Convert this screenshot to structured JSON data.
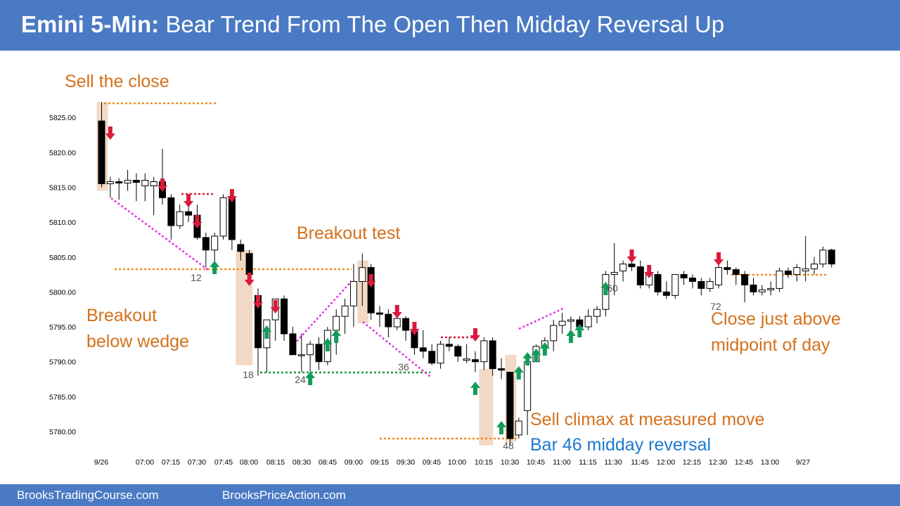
{
  "header": {
    "title_bold": "Emini 5-Min:",
    "title_rest": " Bear Trend From The Open Then Midday Reversal Up"
  },
  "footer": {
    "left": "BrooksTradingCourse.com",
    "right": "BrooksPriceAction.com"
  },
  "colors": {
    "header_bg": "#4a7ac3",
    "annotation": "#d4711c",
    "annotation_blue": "#1a7ad0",
    "bull_arrow": "#129c5a",
    "bear_arrow": "#d81b3c",
    "trendline": "#e233e8",
    "dotted_orange": "#f28a1c",
    "dotted_green": "#1a9a3a",
    "dotted_red": "#d81b3c",
    "highlight": "#f2d9c6"
  },
  "annotations": {
    "sell_the_close": "Sell the close",
    "breakout_test": "Breakout test",
    "breakout_below_wedge_1": "Breakout",
    "breakout_below_wedge_2": "below wedge",
    "close_above_mid_1": "Close just above",
    "close_above_mid_2": "midpoint of day",
    "sell_climax": "Sell climax at measured move",
    "midday_reversal": "Bar 46 midday reversal"
  },
  "chart_data": {
    "type": "candlestick",
    "y_ticks": [
      "5780.00",
      "5785.00",
      "5790.00",
      "5795.00",
      "5800.00",
      "5805.00",
      "5810.00",
      "5815.00",
      "5820.00",
      "5825.00"
    ],
    "x_ticks": [
      "9/26",
      "07:00",
      "07:15",
      "07:30",
      "07:45",
      "08:00",
      "08:15",
      "08:30",
      "08:45",
      "09:00",
      "09:15",
      "09:30",
      "09:45",
      "10:00",
      "10:15",
      "10:30",
      "10:45",
      "11:00",
      "11:15",
      "11:30",
      "11:45",
      "12:00",
      "12:15",
      "12:30",
      "12:45",
      "13:00",
      "9/27"
    ],
    "bar_labels": [
      {
        "bar": 12,
        "text": "12"
      },
      {
        "bar": 18,
        "text": "18"
      },
      {
        "bar": 24,
        "text": "24"
      },
      {
        "bar": 36,
        "text": "36"
      },
      {
        "bar": 48,
        "text": "48"
      },
      {
        "bar": 60,
        "text": "60"
      },
      {
        "bar": 72,
        "text": "72"
      }
    ],
    "bars": [
      {
        "o": 5824.5,
        "h": 5827.2,
        "l": 5815.0,
        "c": 5815.5
      },
      {
        "o": 5815.5,
        "h": 5816.5,
        "l": 5813.5,
        "c": 5815.8
      },
      {
        "o": 5815.8,
        "h": 5816.3,
        "l": 5813.2,
        "c": 5815.6
      },
      {
        "o": 5815.6,
        "h": 5817.5,
        "l": 5814.5,
        "c": 5816.0
      },
      {
        "o": 5816.0,
        "h": 5817.0,
        "l": 5813.0,
        "c": 5815.7
      },
      {
        "o": 5815.2,
        "h": 5817.0,
        "l": 5813.0,
        "c": 5816.0
      },
      {
        "o": 5815.2,
        "h": 5816.5,
        "l": 5811.0,
        "c": 5815.8
      },
      {
        "o": 5815.8,
        "h": 5820.5,
        "l": 5812.5,
        "c": 5813.5
      },
      {
        "o": 5813.5,
        "h": 5814.0,
        "l": 5807.5,
        "c": 5809.5
      },
      {
        "o": 5809.5,
        "h": 5812.5,
        "l": 5809.0,
        "c": 5811.5
      },
      {
        "o": 5811.5,
        "h": 5813.5,
        "l": 5810.0,
        "c": 5811.0
      },
      {
        "o": 5811.0,
        "h": 5812.5,
        "l": 5807.5,
        "c": 5807.8
      },
      {
        "o": 5807.8,
        "h": 5808.5,
        "l": 5803.5,
        "c": 5806.0
      },
      {
        "o": 5806.0,
        "h": 5808.5,
        "l": 5804.0,
        "c": 5808.0
      },
      {
        "o": 5808.0,
        "h": 5814.0,
        "l": 5807.5,
        "c": 5813.5
      },
      {
        "o": 5813.5,
        "h": 5813.5,
        "l": 5806.0,
        "c": 5807.5
      },
      {
        "o": 5806.8,
        "h": 5807.5,
        "l": 5804.5,
        "c": 5805.8
      },
      {
        "o": 5805.5,
        "h": 5806.0,
        "l": 5801.0,
        "c": 5802.5
      },
      {
        "o": 5799.5,
        "h": 5800.5,
        "l": 5788.0,
        "c": 5792.0
      },
      {
        "o": 5792.0,
        "h": 5796.0,
        "l": 5788.5,
        "c": 5796.0
      },
      {
        "o": 5796.0,
        "h": 5799.0,
        "l": 5793.0,
        "c": 5799.0
      },
      {
        "o": 5799.0,
        "h": 5799.5,
        "l": 5793.0,
        "c": 5794.0
      },
      {
        "o": 5794.0,
        "h": 5795.0,
        "l": 5791.0,
        "c": 5791.0
      },
      {
        "o": 5791.0,
        "h": 5794.0,
        "l": 5788.5,
        "c": 5791.0
      },
      {
        "o": 5791.0,
        "h": 5793.0,
        "l": 5788.5,
        "c": 5792.5
      },
      {
        "o": 5792.5,
        "h": 5793.5,
        "l": 5788.8,
        "c": 5790.0
      },
      {
        "o": 5790.0,
        "h": 5795.0,
        "l": 5789.5,
        "c": 5794.5
      },
      {
        "o": 5794.5,
        "h": 5797.5,
        "l": 5791.0,
        "c": 5796.5
      },
      {
        "o": 5796.5,
        "h": 5799.0,
        "l": 5794.0,
        "c": 5798.0
      },
      {
        "o": 5798.0,
        "h": 5804.0,
        "l": 5795.0,
        "c": 5801.5
      },
      {
        "o": 5801.5,
        "h": 5805.5,
        "l": 5798.0,
        "c": 5803.5
      },
      {
        "o": 5803.5,
        "h": 5804.0,
        "l": 5796.0,
        "c": 5797.0
      },
      {
        "o": 5797.0,
        "h": 5798.0,
        "l": 5795.0,
        "c": 5796.8
      },
      {
        "o": 5796.8,
        "h": 5797.5,
        "l": 5793.5,
        "c": 5795.0
      },
      {
        "o": 5795.0,
        "h": 5796.5,
        "l": 5794.5,
        "c": 5796.2
      },
      {
        "o": 5796.2,
        "h": 5796.5,
        "l": 5793.0,
        "c": 5794.5
      },
      {
        "o": 5794.5,
        "h": 5795.5,
        "l": 5791.0,
        "c": 5792.0
      },
      {
        "o": 5792.0,
        "h": 5794.5,
        "l": 5790.5,
        "c": 5791.5
      },
      {
        "o": 5791.5,
        "h": 5792.5,
        "l": 5789.5,
        "c": 5789.8
      },
      {
        "o": 5789.8,
        "h": 5793.0,
        "l": 5789.0,
        "c": 5792.5
      },
      {
        "o": 5792.5,
        "h": 5793.5,
        "l": 5791.5,
        "c": 5792.2
      },
      {
        "o": 5792.2,
        "h": 5792.5,
        "l": 5790.0,
        "c": 5790.8
      },
      {
        "o": 5790.2,
        "h": 5792.5,
        "l": 5789.8,
        "c": 5790.4
      },
      {
        "o": 5790.3,
        "h": 5791.5,
        "l": 5788.5,
        "c": 5790.0
      },
      {
        "o": 5790.0,
        "h": 5793.5,
        "l": 5788.8,
        "c": 5793.0
      },
      {
        "o": 5793.0,
        "h": 5793.5,
        "l": 5788.0,
        "c": 5789.0
      },
      {
        "o": 5789.0,
        "h": 5790.5,
        "l": 5787.5,
        "c": 5788.8
      },
      {
        "o": 5788.5,
        "h": 5788.5,
        "l": 5778.0,
        "c": 5779.0
      },
      {
        "o": 5779.5,
        "h": 5782.0,
        "l": 5779.0,
        "c": 5781.5
      },
      {
        "o": 5783.0,
        "h": 5790.5,
        "l": 5779.5,
        "c": 5790.0
      },
      {
        "o": 5790.0,
        "h": 5792.5,
        "l": 5790.0,
        "c": 5792.2
      },
      {
        "o": 5792.0,
        "h": 5793.5,
        "l": 5791.5,
        "c": 5793.0
      },
      {
        "o": 5793.0,
        "h": 5796.0,
        "l": 5791.5,
        "c": 5795.2
      },
      {
        "o": 5795.2,
        "h": 5797.0,
        "l": 5794.0,
        "c": 5795.8
      },
      {
        "o": 5795.8,
        "h": 5796.5,
        "l": 5794.5,
        "c": 5796.0
      },
      {
        "o": 5796.0,
        "h": 5796.5,
        "l": 5793.5,
        "c": 5795.0
      },
      {
        "o": 5795.0,
        "h": 5797.5,
        "l": 5794.5,
        "c": 5796.5
      },
      {
        "o": 5796.5,
        "h": 5798.0,
        "l": 5795.5,
        "c": 5797.5
      },
      {
        "o": 5797.5,
        "h": 5803.0,
        "l": 5796.5,
        "c": 5802.5
      },
      {
        "o": 5802.5,
        "h": 5807.0,
        "l": 5799.5,
        "c": 5802.8
      },
      {
        "o": 5803.0,
        "h": 5804.5,
        "l": 5801.5,
        "c": 5804.0
      },
      {
        "o": 5804.0,
        "h": 5804.5,
        "l": 5803.0,
        "c": 5803.6
      },
      {
        "o": 5803.6,
        "h": 5804.5,
        "l": 5800.5,
        "c": 5801.0
      },
      {
        "o": 5801.0,
        "h": 5803.0,
        "l": 5800.5,
        "c": 5802.5
      },
      {
        "o": 5802.5,
        "h": 5803.0,
        "l": 5799.5,
        "c": 5800.0
      },
      {
        "o": 5800.0,
        "h": 5801.5,
        "l": 5799.0,
        "c": 5799.5
      },
      {
        "o": 5799.5,
        "h": 5802.5,
        "l": 5799.0,
        "c": 5802.5
      },
      {
        "o": 5802.5,
        "h": 5803.0,
        "l": 5801.0,
        "c": 5802.0
      },
      {
        "o": 5802.0,
        "h": 5802.5,
        "l": 5800.5,
        "c": 5801.5
      },
      {
        "o": 5801.5,
        "h": 5802.0,
        "l": 5799.5,
        "c": 5800.5
      },
      {
        "o": 5800.5,
        "h": 5802.0,
        "l": 5800.0,
        "c": 5801.5
      },
      {
        "o": 5801.0,
        "h": 5804.5,
        "l": 5800.5,
        "c": 5803.5
      },
      {
        "o": 5803.5,
        "h": 5804.5,
        "l": 5802.5,
        "c": 5803.2
      },
      {
        "o": 5803.2,
        "h": 5803.5,
        "l": 5801.0,
        "c": 5802.5
      },
      {
        "o": 5802.5,
        "h": 5803.0,
        "l": 5798.5,
        "c": 5801.0
      },
      {
        "o": 5801.0,
        "h": 5802.0,
        "l": 5799.5,
        "c": 5800.0
      },
      {
        "o": 5800.0,
        "h": 5801.0,
        "l": 5799.5,
        "c": 5800.3
      },
      {
        "o": 5800.3,
        "h": 5801.5,
        "l": 5799.5,
        "c": 5800.5
      },
      {
        "o": 5800.5,
        "h": 5803.5,
        "l": 5800.0,
        "c": 5803.0
      },
      {
        "o": 5803.0,
        "h": 5803.5,
        "l": 5802.0,
        "c": 5802.5
      },
      {
        "o": 5802.5,
        "h": 5804.0,
        "l": 5801.5,
        "c": 5803.5
      },
      {
        "o": 5803.0,
        "h": 5808.0,
        "l": 5801.5,
        "c": 5803.3
      },
      {
        "o": 5803.3,
        "h": 5805.0,
        "l": 5802.5,
        "c": 5804.0
      },
      {
        "o": 5804.0,
        "h": 5806.5,
        "l": 5803.5,
        "c": 5806.0
      },
      {
        "o": 5806.0,
        "h": 5806.2,
        "l": 5803.5,
        "c": 5804.0
      }
    ]
  }
}
